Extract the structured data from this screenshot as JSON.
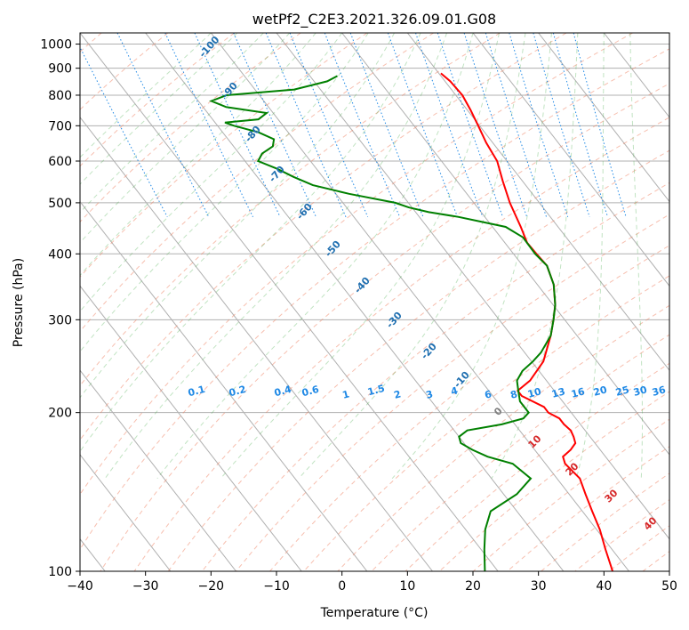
{
  "chart_data": {
    "type": "line",
    "title": "wetPf2_C2E3.2021.326.09.01.G08",
    "xlabel": "Temperature (°C)",
    "ylabel": "Pressure (hPa)",
    "xlim": [
      -40,
      50
    ],
    "ylim": [
      1050,
      100
    ],
    "y_scale": "log",
    "skew_per_decade": 62.5,
    "grid": true,
    "x_ticks": [
      -40,
      -30,
      -20,
      -10,
      0,
      10,
      20,
      30,
      40,
      50
    ],
    "y_ticks": [
      100,
      200,
      300,
      400,
      500,
      600,
      700,
      800,
      900,
      1000
    ],
    "series": [
      {
        "color": "#ff0000",
        "points": [
          [
            880,
            10.3
          ],
          [
            850,
            10.8
          ],
          [
            800,
            11.0
          ],
          [
            750,
            10.5
          ],
          [
            700,
            9.8
          ],
          [
            650,
            9.0
          ],
          [
            600,
            8.5
          ],
          [
            550,
            7.0
          ],
          [
            500,
            5.5
          ],
          [
            450,
            4.3
          ],
          [
            420,
            3.4
          ],
          [
            400,
            3.5
          ],
          [
            380,
            3.7
          ],
          [
            350,
            2.5
          ],
          [
            320,
            0.3
          ],
          [
            300,
            -1.7
          ],
          [
            280,
            -4.0
          ],
          [
            250,
            -8.2
          ],
          [
            230,
            -12.5
          ],
          [
            220,
            -15.6
          ],
          [
            215,
            -15.6
          ],
          [
            205,
            -13.5
          ],
          [
            200,
            -13.5
          ],
          [
            195,
            -12.5
          ],
          [
            190,
            -12.5
          ],
          [
            185,
            -12.2
          ],
          [
            180,
            -12.5
          ],
          [
            175,
            -13.0
          ],
          [
            170,
            -14.5
          ],
          [
            165,
            -16.5
          ],
          [
            160,
            -17.0
          ],
          [
            150,
            -16.5
          ],
          [
            140,
            -17.5
          ],
          [
            130,
            -18.5
          ],
          [
            120,
            -19.5
          ],
          [
            110,
            -21.0
          ],
          [
            100,
            -22.5
          ]
        ]
      },
      {
        "color": "#008000",
        "points": [
          [
            870,
            -5.8
          ],
          [
            850,
            -8.0
          ],
          [
            820,
            -14.0
          ],
          [
            800,
            -25.0
          ],
          [
            780,
            -28.0
          ],
          [
            760,
            -26.5
          ],
          [
            740,
            -21.0
          ],
          [
            720,
            -23.0
          ],
          [
            710,
            -28.5
          ],
          [
            700,
            -27.5
          ],
          [
            680,
            -24.5
          ],
          [
            660,
            -23.0
          ],
          [
            640,
            -24.0
          ],
          [
            620,
            -26.5
          ],
          [
            600,
            -28.0
          ],
          [
            580,
            -26.0
          ],
          [
            560,
            -24.5
          ],
          [
            540,
            -22.5
          ],
          [
            520,
            -18.0
          ],
          [
            500,
            -12.0
          ],
          [
            490,
            -10.5
          ],
          [
            480,
            -8.0
          ],
          [
            470,
            -4.0
          ],
          [
            460,
            -1.0
          ],
          [
            450,
            2.0
          ],
          [
            430,
            3.4
          ],
          [
            400,
            3.3
          ],
          [
            380,
            3.7
          ],
          [
            350,
            2.5
          ],
          [
            320,
            0.3
          ],
          [
            300,
            -1.7
          ],
          [
            280,
            -4.0
          ],
          [
            260,
            -7.5
          ],
          [
            250,
            -9.8
          ],
          [
            240,
            -12.5
          ],
          [
            230,
            -14.5
          ],
          [
            220,
            -15.5
          ],
          [
            210,
            -16.5
          ],
          [
            200,
            -16.5
          ],
          [
            195,
            -18.0
          ],
          [
            190,
            -22.0
          ],
          [
            185,
            -28.0
          ],
          [
            180,
            -30.0
          ],
          [
            175,
            -30.5
          ],
          [
            170,
            -29.5
          ],
          [
            165,
            -28.0
          ],
          [
            160,
            -25.0
          ],
          [
            150,
            -24.0
          ],
          [
            140,
            -28.0
          ],
          [
            130,
            -34.0
          ],
          [
            120,
            -37.0
          ],
          [
            110,
            -39.5
          ],
          [
            100,
            -42.0
          ]
        ]
      }
    ],
    "dry_adiabat_labels": [
      "-100",
      "-90",
      "-80",
      "-70",
      "-60",
      "-50",
      "-40",
      "-30",
      "-20",
      "-10"
    ],
    "mixing_ratio_labels": [
      "0.1",
      "0.2",
      "0.4",
      "0.6",
      "1",
      "1.5",
      "2",
      "3",
      "4",
      "6",
      "8",
      "10",
      "13",
      "16",
      "20",
      "25",
      "30",
      "36"
    ],
    "moist_adiabat_labels": [
      "0",
      "10",
      "20",
      "30",
      "40"
    ]
  }
}
